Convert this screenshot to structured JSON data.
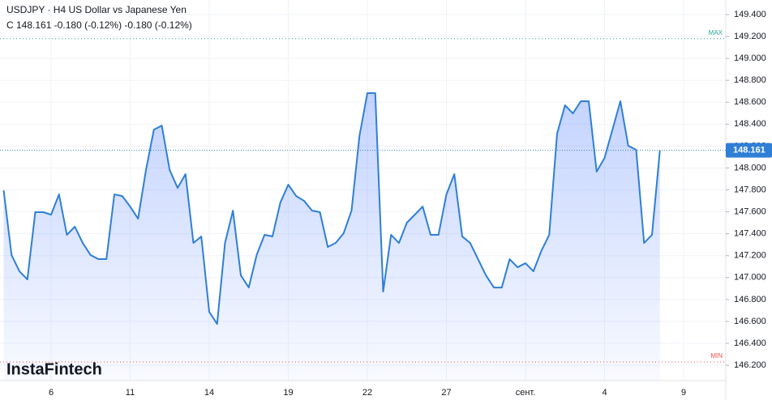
{
  "chart_data": {
    "type": "area",
    "title": "USDJPY · H4 US Dollar vs Japanese Yen",
    "subtitle": "C 148.161 -0.180 (-0.12%) -0.180 (-0.12%)",
    "watermark": "InstaFintech",
    "categories": [
      null,
      null,
      null,
      null,
      null,
      null,
      "6",
      null,
      null,
      null,
      null,
      null,
      null,
      null,
      null,
      null,
      "11",
      null,
      null,
      null,
      null,
      null,
      null,
      null,
      null,
      null,
      "14",
      null,
      null,
      null,
      null,
      null,
      null,
      null,
      null,
      null,
      "19",
      null,
      null,
      null,
      null,
      null,
      null,
      null,
      null,
      null,
      "22",
      null,
      null,
      null,
      null,
      null,
      null,
      null,
      null,
      null,
      "27",
      null,
      null,
      null,
      null,
      null,
      null,
      null,
      null,
      null,
      "сент.",
      null,
      null,
      null,
      null,
      null,
      null,
      null,
      null,
      null,
      "4",
      null,
      null,
      null,
      null,
      null,
      null,
      null,
      null,
      null,
      "9"
    ],
    "series": [
      {
        "name": "USDJPY",
        "color": "#2f7fd6",
        "values": [
          147.796,
          147.205,
          147.057,
          146.983,
          147.597,
          147.597,
          147.574,
          147.759,
          147.39,
          147.464,
          147.316,
          147.205,
          147.168,
          147.168,
          147.759,
          147.744,
          147.648,
          147.537,
          147.981,
          148.35,
          148.387,
          147.981,
          147.818,
          147.944,
          147.316,
          147.375,
          146.687,
          146.577,
          147.316,
          147.611,
          147.02,
          146.909,
          147.205,
          147.39,
          147.375,
          147.685,
          147.848,
          147.744,
          147.7,
          147.611,
          147.597,
          147.279,
          147.316,
          147.404,
          147.611,
          148.291,
          148.683,
          148.683,
          146.872,
          147.39,
          147.316,
          147.501,
          147.574,
          147.648,
          147.39,
          147.39,
          147.759,
          147.944,
          147.375,
          147.316,
          147.168,
          147.02,
          146.909,
          146.909,
          147.168,
          147.094,
          147.131,
          147.057,
          147.242,
          147.39,
          148.314,
          148.572,
          148.498,
          148.609,
          148.609,
          147.966,
          148.092,
          148.35,
          148.609,
          148.203,
          148.166,
          147.316,
          147.39,
          148.161,
          null,
          null,
          null
        ]
      }
    ],
    "last_price": 148.161,
    "max_line": {
      "value": 149.18,
      "label": "MAX",
      "color": "#26a69a"
    },
    "min_line": {
      "value": 146.23,
      "label": "MIN",
      "color": "#ef5350"
    },
    "ylim": [
      146.06,
      149.533
    ],
    "yticks": [
      {
        "value": 146.2,
        "label": "146.200"
      },
      {
        "value": 146.4,
        "label": "146.400"
      },
      {
        "value": 146.6,
        "label": "146.600"
      },
      {
        "value": 146.8,
        "label": "146.800"
      },
      {
        "value": 147.0,
        "label": "147.000"
      },
      {
        "value": 147.2,
        "label": "147.200"
      },
      {
        "value": 147.4,
        "label": "147.400"
      },
      {
        "value": 147.6,
        "label": "147.600"
      },
      {
        "value": 147.8,
        "label": "147.800"
      },
      {
        "value": 148.0,
        "label": "148.000"
      },
      {
        "value": 148.2,
        "label": "148.200"
      },
      {
        "value": 148.4,
        "label": "148.400"
      },
      {
        "value": 148.6,
        "label": "148.600"
      },
      {
        "value": 148.8,
        "label": "148.800"
      },
      {
        "value": 149.0,
        "label": "149.000"
      },
      {
        "value": 149.2,
        "label": "149.200"
      },
      {
        "value": 149.4,
        "label": "149.400"
      }
    ],
    "grid": true
  }
}
